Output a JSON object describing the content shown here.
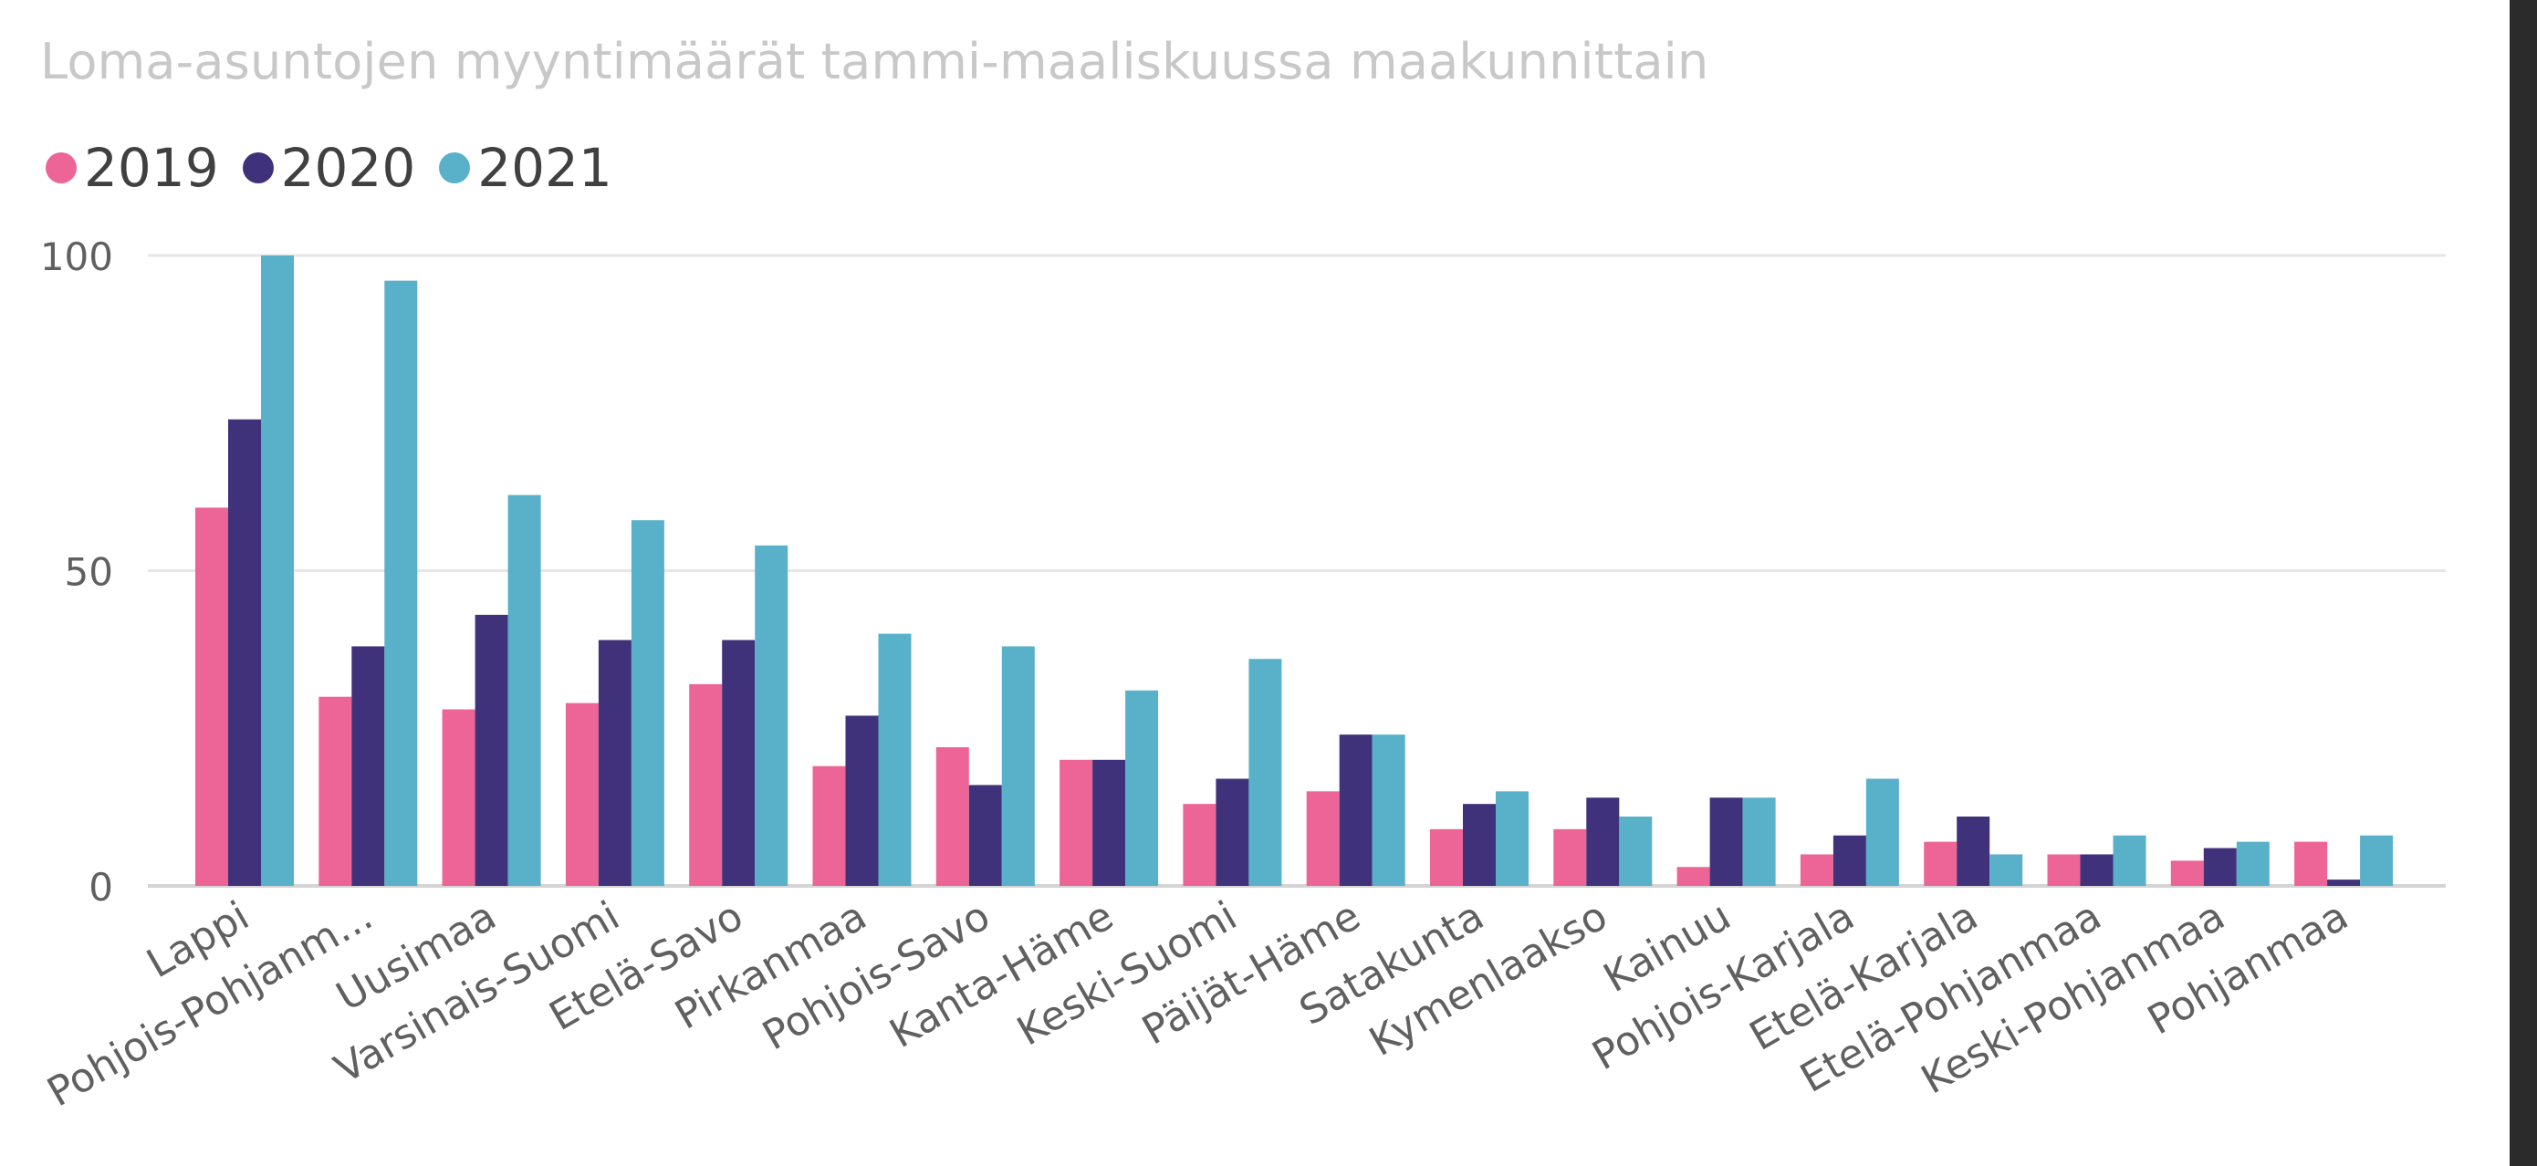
{
  "chart_data": {
    "type": "bar",
    "title": "Loma-asuntojen myyntimäärät tammi-maaliskuussa maakunnittain",
    "xlabel": "",
    "ylabel": "",
    "ylim": [
      0,
      100
    ],
    "yticks": [
      0,
      50,
      100
    ],
    "grid": true,
    "legend_position": "top-left",
    "categories": [
      "Lappi",
      "Pohjois-Pohjanm...",
      "Uusimaa",
      "Varsinais-Suomi",
      "Etelä-Savo",
      "Pirkanmaa",
      "Pohjois-Savo",
      "Kanta-Häme",
      "Keski-Suomi",
      "Päijät-Häme",
      "Satakunta",
      "Kymenlaakso",
      "Kainuu",
      "Pohjois-Karjala",
      "Etelä-Karjala",
      "Etelä-Pohjanmaa",
      "Keski-Pohjanmaa",
      "Pohjanmaa"
    ],
    "series": [
      {
        "name": "2019",
        "color": "#ec6596",
        "values": [
          60,
          30,
          28,
          29,
          32,
          19,
          22,
          20,
          13,
          15,
          9,
          9,
          3,
          5,
          7,
          5,
          4,
          7
        ]
      },
      {
        "name": "2020",
        "color": "#40327a",
        "values": [
          74,
          38,
          43,
          39,
          39,
          27,
          16,
          20,
          17,
          24,
          13,
          14,
          14,
          8,
          11,
          5,
          6,
          1
        ]
      },
      {
        "name": "2021",
        "color": "#58b1c9",
        "values": [
          100,
          96,
          62,
          58,
          54,
          40,
          38,
          31,
          36,
          24,
          15,
          11,
          14,
          17,
          5,
          8,
          7,
          8
        ]
      }
    ]
  }
}
